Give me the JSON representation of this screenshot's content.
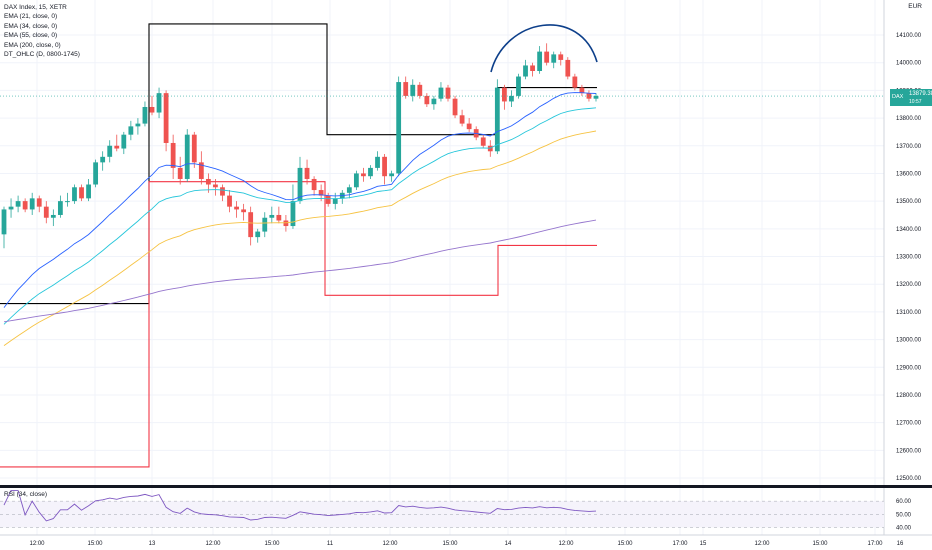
{
  "chart_data": {
    "type": "candlestick",
    "symbol_line": "DAX Index, 15, XETR",
    "currency": "EUR",
    "indicators": [
      {
        "label": "EMA (21, close, 0)",
        "color": "#2962ff"
      },
      {
        "label": "EMA (34, close, 0)",
        "color": "#26c6da"
      },
      {
        "label": "EMA (55, close, 0)",
        "color": "#f6c343"
      },
      {
        "label": "EMA (200, close, 0)",
        "color": "#9575cd"
      },
      {
        "label": "DT_OHLC (D, 0800-1745)",
        "color": "#000000"
      }
    ],
    "colors": {
      "up": "#26a69a",
      "down": "#ef5350",
      "high_line": "#000000",
      "low_line": "#f23645",
      "arc": "#0d3f8a"
    },
    "ylim": [
      12460,
      14160
    ],
    "y_ticks": [
      "14100.00",
      "14000.00",
      "13900.00",
      "13800.00",
      "13700.00",
      "13600.00",
      "13500.00",
      "13400.00",
      "13300.00",
      "13200.00",
      "13100.00",
      "13000.00",
      "12900.00",
      "12800.00",
      "12700.00",
      "12600.00",
      "12500.00"
    ],
    "x_ticks": [
      "12:00",
      "15:00",
      "13",
      "12:00",
      "15:00",
      "11",
      "12:00",
      "15:00",
      "14",
      "12:00",
      "15:00",
      "17:00",
      "15",
      "12:00",
      "15:00",
      "17:00",
      "16"
    ],
    "last_price": {
      "symbol": "DAX",
      "value": "13879.38",
      "countdown": "10:57"
    },
    "candles": [
      [
        13380,
        13480,
        13330,
        13470
      ],
      [
        13470,
        13510,
        13440,
        13480
      ],
      [
        13480,
        13520,
        13460,
        13500
      ],
      [
        13500,
        13510,
        13460,
        13470
      ],
      [
        13470,
        13530,
        13450,
        13510
      ],
      [
        13510,
        13520,
        13460,
        13480
      ],
      [
        13480,
        13500,
        13420,
        13440
      ],
      [
        13440,
        13470,
        13410,
        13450
      ],
      [
        13450,
        13520,
        13440,
        13500
      ],
      [
        13500,
        13530,
        13480,
        13500
      ],
      [
        13500,
        13560,
        13490,
        13550
      ],
      [
        13550,
        13560,
        13500,
        13510
      ],
      [
        13510,
        13580,
        13500,
        13560
      ],
      [
        13560,
        13650,
        13550,
        13640
      ],
      [
        13640,
        13680,
        13610,
        13660
      ],
      [
        13660,
        13720,
        13640,
        13700
      ],
      [
        13700,
        13740,
        13680,
        13690
      ],
      [
        13690,
        13750,
        13670,
        13740
      ],
      [
        13740,
        13790,
        13720,
        13770
      ],
      [
        13770,
        13800,
        13740,
        13780
      ],
      [
        13780,
        13860,
        13770,
        13840
      ],
      [
        13840,
        13880,
        13810,
        13820
      ],
      [
        13820,
        13910,
        13800,
        13890
      ],
      [
        13890,
        13900,
        13680,
        13710
      ],
      [
        13710,
        13740,
        13580,
        13620
      ],
      [
        13620,
        13660,
        13560,
        13580
      ],
      [
        13580,
        13760,
        13570,
        13740
      ],
      [
        13740,
        13750,
        13620,
        13640
      ],
      [
        13640,
        13680,
        13560,
        13580
      ],
      [
        13580,
        13600,
        13530,
        13560
      ],
      [
        13560,
        13580,
        13520,
        13550
      ],
      [
        13550,
        13560,
        13500,
        13520
      ],
      [
        13520,
        13540,
        13460,
        13480
      ],
      [
        13480,
        13500,
        13440,
        13470
      ],
      [
        13470,
        13490,
        13430,
        13460
      ],
      [
        13460,
        13480,
        13340,
        13370
      ],
      [
        13370,
        13400,
        13350,
        13390
      ],
      [
        13390,
        13460,
        13370,
        13440
      ],
      [
        13440,
        13480,
        13420,
        13450
      ],
      [
        13450,
        13480,
        13420,
        13430
      ],
      [
        13430,
        13450,
        13390,
        13410
      ],
      [
        13410,
        13560,
        13400,
        13500
      ],
      [
        13500,
        13660,
        13490,
        13620
      ],
      [
        13620,
        13650,
        13560,
        13580
      ],
      [
        13580,
        13590,
        13520,
        13540
      ],
      [
        13540,
        13560,
        13500,
        13520
      ],
      [
        13520,
        13530,
        13480,
        13490
      ],
      [
        13490,
        13530,
        13470,
        13510
      ],
      [
        13510,
        13540,
        13490,
        13530
      ],
      [
        13530,
        13560,
        13510,
        13550
      ],
      [
        13550,
        13610,
        13540,
        13600
      ],
      [
        13600,
        13620,
        13570,
        13590
      ],
      [
        13590,
        13630,
        13580,
        13620
      ],
      [
        13620,
        13680,
        13610,
        13660
      ],
      [
        13660,
        13670,
        13560,
        13590
      ],
      [
        13590,
        13610,
        13570,
        13600
      ],
      [
        13600,
        13950,
        13590,
        13930
      ],
      [
        13930,
        13950,
        13870,
        13880
      ],
      [
        13880,
        13940,
        13860,
        13920
      ],
      [
        13920,
        13930,
        13870,
        13880
      ],
      [
        13880,
        13890,
        13840,
        13850
      ],
      [
        13850,
        13880,
        13830,
        13870
      ],
      [
        13870,
        13930,
        13860,
        13910
      ],
      [
        13910,
        13920,
        13860,
        13870
      ],
      [
        13870,
        13880,
        13800,
        13810
      ],
      [
        13810,
        13830,
        13770,
        13780
      ],
      [
        13780,
        13800,
        13750,
        13760
      ],
      [
        13760,
        13770,
        13720,
        13730
      ],
      [
        13730,
        13740,
        13690,
        13700
      ],
      [
        13700,
        13720,
        13660,
        13680
      ],
      [
        13680,
        13940,
        13670,
        13910
      ],
      [
        13910,
        13920,
        13830,
        13860
      ],
      [
        13860,
        13900,
        13840,
        13880
      ],
      [
        13880,
        13960,
        13870,
        13950
      ],
      [
        13950,
        14010,
        13940,
        13990
      ],
      [
        13990,
        14000,
        13950,
        13970
      ],
      [
        13970,
        14060,
        13960,
        14040
      ],
      [
        14040,
        14070,
        13990,
        14000
      ],
      [
        14000,
        14040,
        13980,
        14030
      ],
      [
        14030,
        14040,
        13990,
        14010
      ],
      [
        14010,
        14020,
        13940,
        13950
      ],
      [
        13950,
        13960,
        13900,
        13910
      ],
      [
        13910,
        13920,
        13880,
        13890
      ],
      [
        13890,
        13900,
        13860,
        13870
      ],
      [
        13870,
        13890,
        13860,
        13880
      ]
    ],
    "rsi": {
      "label": "RSI (34, close)",
      "y_ticks": [
        "60.00",
        "50.00",
        "40.00"
      ],
      "ylim": [
        35,
        70
      ]
    }
  }
}
